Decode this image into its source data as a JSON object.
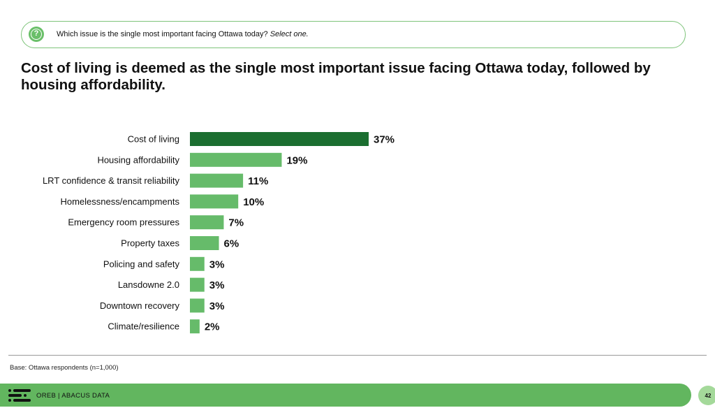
{
  "question": {
    "text": "Which issue is the single most important facing Ottawa today?",
    "instruction": "Select one.",
    "icon": "question-icon"
  },
  "headline": "Cost of living is deemed as the single most important issue facing Ottawa today, followed by housing affordability.",
  "base_note": "Base: Ottawa respondents (n=1,000)",
  "footer": {
    "brand": "OREB  |  ABACUS DATA",
    "page_number": "42",
    "logo_icon": "abacus-logo-icon"
  },
  "colors": {
    "accent": "#62b65f",
    "bar_light": "#66bb6a",
    "bar_dark": "#1b6e30",
    "outline": "#7ec47a"
  },
  "chart_data": {
    "type": "bar",
    "orientation": "horizontal",
    "title": "",
    "xlabel": "",
    "ylabel": "",
    "xlim": [
      0,
      37
    ],
    "grid": false,
    "categories": [
      "Cost of living",
      "Housing affordability",
      "LRT confidence & transit reliability",
      "Homelessness/encampments",
      "Emergency room pressures",
      "Property taxes",
      "Policing and safety",
      "Lansdowne 2.0",
      "Downtown recovery",
      "Climate/resilience"
    ],
    "values": [
      37,
      19,
      11,
      10,
      7,
      6,
      3,
      3,
      3,
      2
    ],
    "labels": [
      "37%",
      "19%",
      "11%",
      "10%",
      "7%",
      "6%",
      "3%",
      "3%",
      "3%",
      "2%"
    ],
    "highlight_index": 0
  }
}
